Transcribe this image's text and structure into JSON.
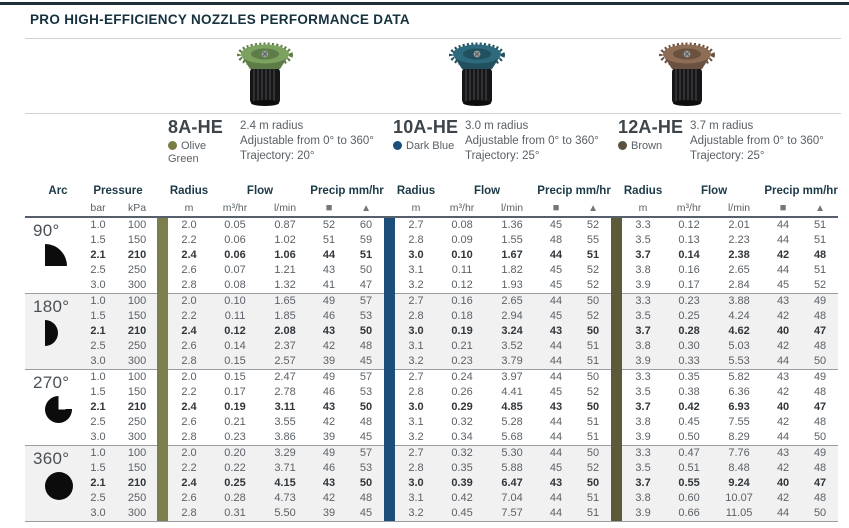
{
  "title": "PRO HIGH-EFFICIENCY NOZZLES PERFORMANCE DATA",
  "nozzles": [
    {
      "name": "8A-HE",
      "color_name": "Olive Green",
      "dot_color": "#7a7d45",
      "cap_color": "#7ca25f",
      "cap_shade": "#5e7c48",
      "radius": "2.4 m radius",
      "adjustable": "Adjustable from 0° to 360°",
      "trajectory": "Trajectory: 20°"
    },
    {
      "name": "10A-HE",
      "color_name": "Dark Blue",
      "dot_color": "#1d4d7a",
      "cap_color": "#2e6a7e",
      "cap_shade": "#22505f",
      "radius": "3.0 m radius",
      "adjustable": "Adjustable from 0° to 360°",
      "trajectory": "Trajectory: 25°"
    },
    {
      "name": "12A-HE",
      "color_name": "Brown",
      "dot_color": "#5a523f",
      "cap_color": "#8d6d55",
      "cap_shade": "#6b5140",
      "radius": "3.7 m radius",
      "adjustable": "Adjustable from 0° to 360°",
      "trajectory": "Trajectory: 25°"
    }
  ],
  "table": {
    "headers": {
      "arc": "Arc",
      "pressure": "Pressure",
      "bar": "bar",
      "kpa": "kPa",
      "radius": "Radius",
      "m": "m",
      "flow": "Flow",
      "m3hr": "m³/hr",
      "lmin": "l/min",
      "precip": "Precip mm/hr",
      "square": "■",
      "triangle": "▲"
    },
    "sep_colors": [
      "#7c7f4b",
      "#1d4e79",
      "#5c5a38"
    ],
    "groups": [
      {
        "arc": "90°",
        "icon": "quarter-circle",
        "rows": [
          {
            "bar": "1.0",
            "kpa": "100",
            "bold": false,
            "n8": [
              "2.0",
              "0.05",
              "0.87",
              "52",
              "60"
            ],
            "n10": [
              "2.7",
              "0.08",
              "1.36",
              "45",
              "52"
            ],
            "n12": [
              "3.3",
              "0.12",
              "2.01",
              "44",
              "51"
            ]
          },
          {
            "bar": "1.5",
            "kpa": "150",
            "bold": false,
            "n8": [
              "2.2",
              "0.06",
              "1.02",
              "51",
              "59"
            ],
            "n10": [
              "2.8",
              "0.09",
              "1.55",
              "48",
              "55"
            ],
            "n12": [
              "3.5",
              "0.13",
              "2.23",
              "44",
              "51"
            ]
          },
          {
            "bar": "2.1",
            "kpa": "210",
            "bold": true,
            "n8": [
              "2.4",
              "0.06",
              "1.06",
              "44",
              "51"
            ],
            "n10": [
              "3.0",
              "0.10",
              "1.67",
              "44",
              "51"
            ],
            "n12": [
              "3.7",
              "0.14",
              "2.38",
              "42",
              "48"
            ]
          },
          {
            "bar": "2.5",
            "kpa": "250",
            "bold": false,
            "n8": [
              "2.6",
              "0.07",
              "1.21",
              "43",
              "50"
            ],
            "n10": [
              "3.1",
              "0.11",
              "1.82",
              "45",
              "52"
            ],
            "n12": [
              "3.8",
              "0.16",
              "2.65",
              "44",
              "51"
            ]
          },
          {
            "bar": "3.0",
            "kpa": "300",
            "bold": false,
            "n8": [
              "2.8",
              "0.08",
              "1.32",
              "41",
              "47"
            ],
            "n10": [
              "3.2",
              "0.12",
              "1.93",
              "45",
              "52"
            ],
            "n12": [
              "3.9",
              "0.17",
              "2.84",
              "45",
              "52"
            ]
          }
        ]
      },
      {
        "arc": "180°",
        "icon": "half-circle",
        "rows": [
          {
            "bar": "1.0",
            "kpa": "100",
            "bold": false,
            "n8": [
              "2.0",
              "0.10",
              "1.65",
              "49",
              "57"
            ],
            "n10": [
              "2.7",
              "0.16",
              "2.65",
              "44",
              "50"
            ],
            "n12": [
              "3.3",
              "0.23",
              "3.88",
              "43",
              "49"
            ]
          },
          {
            "bar": "1.5",
            "kpa": "150",
            "bold": false,
            "n8": [
              "2.2",
              "0.11",
              "1.85",
              "46",
              "53"
            ],
            "n10": [
              "2.8",
              "0.18",
              "2.94",
              "45",
              "52"
            ],
            "n12": [
              "3.5",
              "0.25",
              "4.24",
              "42",
              "48"
            ]
          },
          {
            "bar": "2.1",
            "kpa": "210",
            "bold": true,
            "n8": [
              "2.4",
              "0.12",
              "2.08",
              "43",
              "50"
            ],
            "n10": [
              "3.0",
              "0.19",
              "3.24",
              "43",
              "50"
            ],
            "n12": [
              "3.7",
              "0.28",
              "4.62",
              "40",
              "47"
            ]
          },
          {
            "bar": "2.5",
            "kpa": "250",
            "bold": false,
            "n8": [
              "2.6",
              "0.14",
              "2.37",
              "42",
              "48"
            ],
            "n10": [
              "3.1",
              "0.21",
              "3.52",
              "44",
              "51"
            ],
            "n12": [
              "3.8",
              "0.30",
              "5.03",
              "42",
              "48"
            ]
          },
          {
            "bar": "3.0",
            "kpa": "300",
            "bold": false,
            "n8": [
              "2.8",
              "0.15",
              "2.57",
              "39",
              "45"
            ],
            "n10": [
              "3.2",
              "0.23",
              "3.79",
              "44",
              "51"
            ],
            "n12": [
              "3.9",
              "0.33",
              "5.53",
              "44",
              "50"
            ]
          }
        ]
      },
      {
        "arc": "270°",
        "icon": "three-quarter-circle",
        "rows": [
          {
            "bar": "1.0",
            "kpa": "100",
            "bold": false,
            "n8": [
              "2.0",
              "0.15",
              "2.47",
              "49",
              "57"
            ],
            "n10": [
              "2.7",
              "0.24",
              "3.97",
              "44",
              "50"
            ],
            "n12": [
              "3.3",
              "0.35",
              "5.82",
              "43",
              "49"
            ]
          },
          {
            "bar": "1.5",
            "kpa": "150",
            "bold": false,
            "n8": [
              "2.2",
              "0.17",
              "2.78",
              "46",
              "53"
            ],
            "n10": [
              "2.8",
              "0.26",
              "4.41",
              "45",
              "52"
            ],
            "n12": [
              "3.5",
              "0.38",
              "6.36",
              "42",
              "48"
            ]
          },
          {
            "bar": "2.1",
            "kpa": "210",
            "bold": true,
            "n8": [
              "2.4",
              "0.19",
              "3.11",
              "43",
              "50"
            ],
            "n10": [
              "3.0",
              "0.29",
              "4.85",
              "43",
              "50"
            ],
            "n12": [
              "3.7",
              "0.42",
              "6.93",
              "40",
              "47"
            ]
          },
          {
            "bar": "2.5",
            "kpa": "250",
            "bold": false,
            "n8": [
              "2.6",
              "0.21",
              "3.55",
              "42",
              "48"
            ],
            "n10": [
              "3.1",
              "0.32",
              "5.28",
              "44",
              "51"
            ],
            "n12": [
              "3.8",
              "0.45",
              "7.55",
              "42",
              "48"
            ]
          },
          {
            "bar": "3.0",
            "kpa": "300",
            "bold": false,
            "n8": [
              "2.8",
              "0.23",
              "3.86",
              "39",
              "45"
            ],
            "n10": [
              "3.2",
              "0.34",
              "5.68",
              "44",
              "51"
            ],
            "n12": [
              "3.9",
              "0.50",
              "8.29",
              "44",
              "50"
            ]
          }
        ]
      },
      {
        "arc": "360°",
        "icon": "full-circle",
        "rows": [
          {
            "bar": "1.0",
            "kpa": "100",
            "bold": false,
            "n8": [
              "2.0",
              "0.20",
              "3.29",
              "49",
              "57"
            ],
            "n10": [
              "2.7",
              "0.32",
              "5.30",
              "44",
              "50"
            ],
            "n12": [
              "3.3",
              "0.47",
              "7.76",
              "43",
              "49"
            ]
          },
          {
            "bar": "1.5",
            "kpa": "150",
            "bold": false,
            "n8": [
              "2.2",
              "0.22",
              "3.71",
              "46",
              "53"
            ],
            "n10": [
              "2.8",
              "0.35",
              "5.88",
              "45",
              "52"
            ],
            "n12": [
              "3.5",
              "0.51",
              "8.48",
              "42",
              "48"
            ]
          },
          {
            "bar": "2.1",
            "kpa": "210",
            "bold": true,
            "n8": [
              "2.4",
              "0.25",
              "4.15",
              "43",
              "50"
            ],
            "n10": [
              "3.0",
              "0.39",
              "6.47",
              "43",
              "50"
            ],
            "n12": [
              "3.7",
              "0.55",
              "9.24",
              "40",
              "47"
            ]
          },
          {
            "bar": "2.5",
            "kpa": "250",
            "bold": false,
            "n8": [
              "2.6",
              "0.28",
              "4.73",
              "42",
              "48"
            ],
            "n10": [
              "3.1",
              "0.42",
              "7.04",
              "44",
              "51"
            ],
            "n12": [
              "3.8",
              "0.60",
              "10.07",
              "42",
              "48"
            ]
          },
          {
            "bar": "3.0",
            "kpa": "300",
            "bold": false,
            "n8": [
              "2.8",
              "0.31",
              "5.50",
              "39",
              "45"
            ],
            "n10": [
              "3.2",
              "0.45",
              "7.57",
              "44",
              "51"
            ],
            "n12": [
              "3.9",
              "0.66",
              "11.05",
              "44",
              "50"
            ]
          }
        ]
      }
    ]
  }
}
